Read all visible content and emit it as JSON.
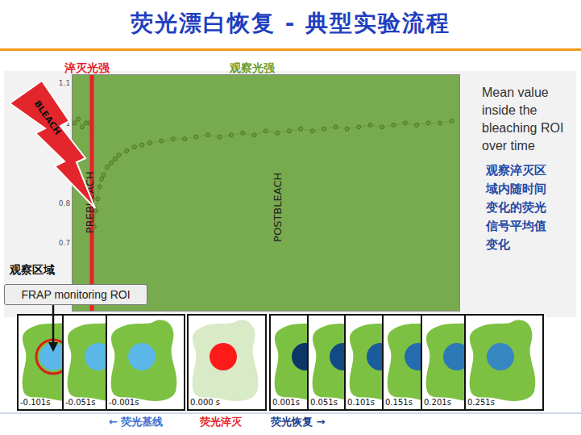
{
  "chart_data": {
    "type": "scatter",
    "annotations": [
      "PREBLEACH",
      "POSTBLEACH"
    ],
    "x": [
      0.5,
      1.5,
      2.5,
      3.5,
      4.5,
      5.6,
      6.0,
      6.5,
      7.0,
      7.5,
      8.0,
      9,
      10,
      11,
      12,
      14,
      16,
      18,
      20,
      23,
      26,
      29,
      32,
      35,
      38,
      41,
      44,
      47,
      50,
      53,
      56,
      59,
      62,
      65,
      68,
      71,
      74,
      77,
      80,
      83,
      86,
      89,
      92,
      95,
      98
    ],
    "values": [
      1.0,
      1.01,
      0.99,
      1.0,
      1.0,
      0.74,
      0.78,
      0.81,
      0.84,
      0.86,
      0.87,
      0.89,
      0.9,
      0.91,
      0.92,
      0.93,
      0.94,
      0.945,
      0.95,
      0.955,
      0.96,
      0.96,
      0.965,
      0.97,
      0.965,
      0.97,
      0.975,
      0.97,
      0.98,
      0.975,
      0.98,
      0.985,
      0.98,
      0.985,
      0.99,
      0.985,
      0.99,
      0.995,
      0.99,
      0.995,
      1.0,
      0.995,
      1.0,
      1.0,
      1.005
    ],
    "color": "#6d9a3c",
    "marker": "circle",
    "line_style": "solid",
    "bleach_line": {
      "x": 5,
      "color": "#e8202a"
    },
    "xlim": [
      0,
      100
    ],
    "xticks": [],
    "ylim": [
      0.53,
      1.12
    ],
    "yticks": [
      0.7,
      0.8,
      1,
      1.1
    ],
    "grid": false,
    "tick_labels": "y"
  },
  "slide": {
    "title": "荧光漂白恢复 - 典型实验流程",
    "label_bleach_intensity": "淬灭光强",
    "label_observe_intensity": "观察光强",
    "bolt_text": "BLEACH",
    "side_text_en": "Mean value inside the bleaching ROI over time",
    "side_text_zh": "观察淬灭区域内随时间变化的荧光信号平均值变化",
    "roi_label_zh": "观察区域",
    "roi_label_en": "FRAP monitoring ROI",
    "frames": [
      {
        "label": "-0.101s",
        "color": "#5bb8e8"
      },
      {
        "label": "-0.051s",
        "color": "#5bb8e8"
      },
      {
        "label": "-0.001s",
        "color": "#5bb8e8"
      },
      {
        "label": "0.000 s",
        "color": "#ff1a1a",
        "cell_color": "#d8eac6"
      },
      {
        "label": "0.001s",
        "color": "#0b3766"
      },
      {
        "label": "0.051s",
        "color": "#124a85"
      },
      {
        "label": "0.101s",
        "color": "#1a5c9c"
      },
      {
        "label": "0.151s",
        "color": "#246cad"
      },
      {
        "label": "0.201s",
        "color": "#2c79b8"
      },
      {
        "label": "0.251s",
        "color": "#3686c2"
      }
    ],
    "bottom_labels": [
      {
        "text": "← 荧光基线",
        "color": "#3b6fd1"
      },
      {
        "text": "荧光淬灭",
        "color": "#e8202a"
      },
      {
        "text": "荧光恢复 →",
        "color": "#1d3f8f"
      }
    ]
  }
}
